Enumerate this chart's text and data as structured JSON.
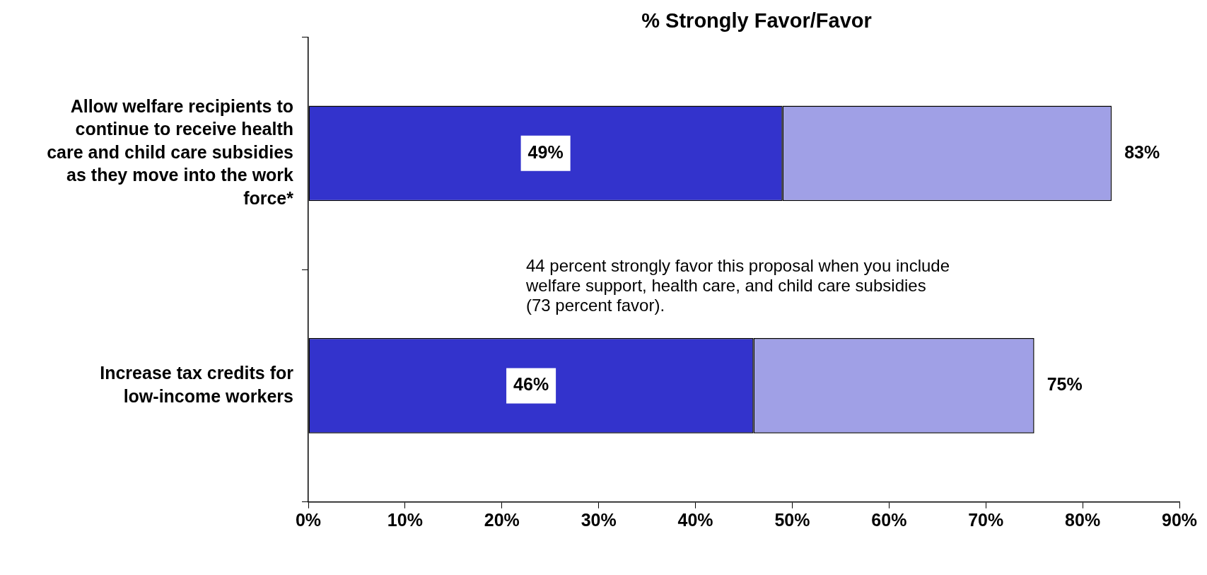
{
  "chart_data": {
    "type": "bar",
    "orientation": "horizontal",
    "stacked": true,
    "title": "% Strongly Favor/Favor",
    "categories": [
      "Allow welfare recipients to continue to receive health care and child care subsidies as they move into the work force*",
      "Increase tax credits for low-income workers"
    ],
    "series": [
      {
        "name": null,
        "color": "#3333cc",
        "values": [
          49,
          46
        ],
        "value_labels": [
          "49%",
          "46%"
        ]
      },
      {
        "name": null,
        "color": "#a0a0e6",
        "values": [
          34,
          29
        ]
      }
    ],
    "totals": [
      "83%",
      "75%"
    ],
    "xlim": [
      0,
      90
    ],
    "xticks": [
      {
        "value": 0,
        "label": "0%"
      },
      {
        "value": 10,
        "label": "10%"
      },
      {
        "value": 20,
        "label": "20%"
      },
      {
        "value": 30,
        "label": "30%"
      },
      {
        "value": 40,
        "label": "40%"
      },
      {
        "value": 50,
        "label": "50%"
      },
      {
        "value": 60,
        "label": "60%"
      },
      {
        "value": 70,
        "label": "70%"
      },
      {
        "value": 80,
        "label": "80%"
      },
      {
        "value": 90,
        "label": "90%"
      }
    ],
    "annotations": [
      "44 percent strongly favor this proposal when you include welfare support, health care, and child care subsidies (73 percent favor)."
    ],
    "grid": false,
    "legend": false
  }
}
